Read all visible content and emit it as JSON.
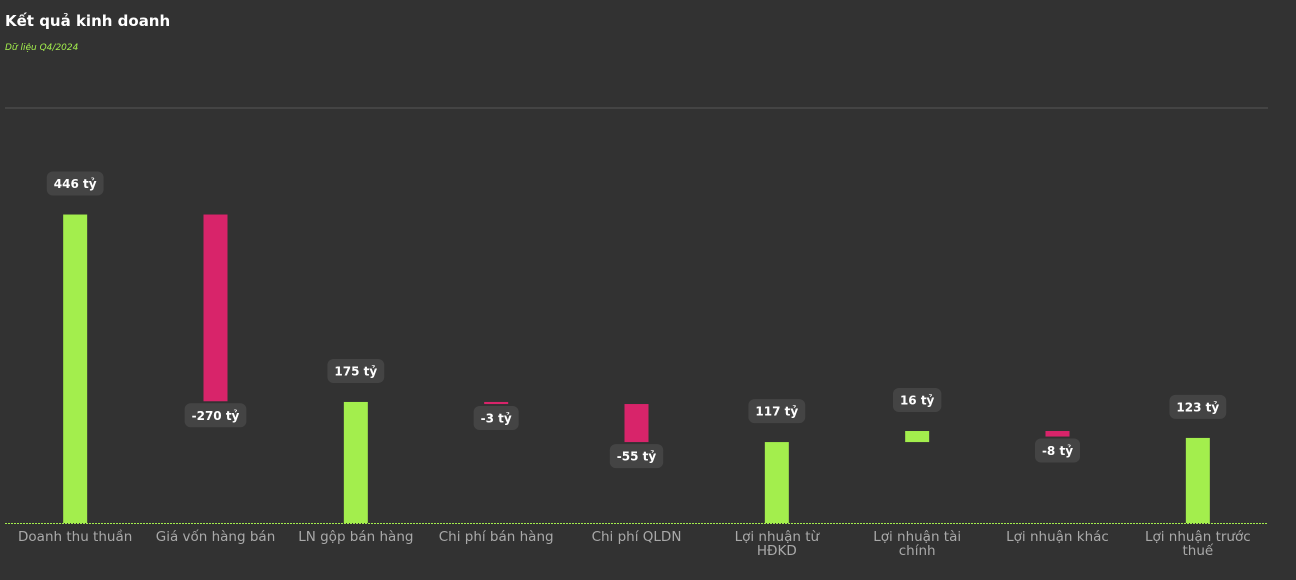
{
  "chart_data": {
    "type": "waterfall",
    "title": "Kết quả kinh doanh",
    "subtitle": "Dữ liệu Q4/2024",
    "categories": [
      "Doanh thu thuần",
      "Giá vốn hàng bán",
      "LN gộp bán hàng",
      "Chi phí bán hàng",
      "Chi phí QLDN",
      "Lợi nhuận từ HĐKD",
      "Lợi nhuận tài chính",
      "Lợi nhuận khác",
      "Lợi nhuận trước thuế"
    ],
    "values": [
      446,
      -270,
      175,
      -3,
      -55,
      117,
      16,
      -8,
      123
    ],
    "value_labels": [
      "446 tỷ",
      "-270 tỷ",
      "175 tỷ",
      "-3 tỷ",
      "-55 tỷ",
      "117 tỷ",
      "16 tỷ",
      "-8 tỷ",
      "123 tỷ"
    ],
    "measure": [
      "total",
      "relative",
      "total",
      "relative",
      "relative",
      "total",
      "relative",
      "relative",
      "total"
    ],
    "positive_color": "#a3ee4d",
    "negative_color": "#d8246a",
    "ylim": [
      0,
      600
    ]
  }
}
